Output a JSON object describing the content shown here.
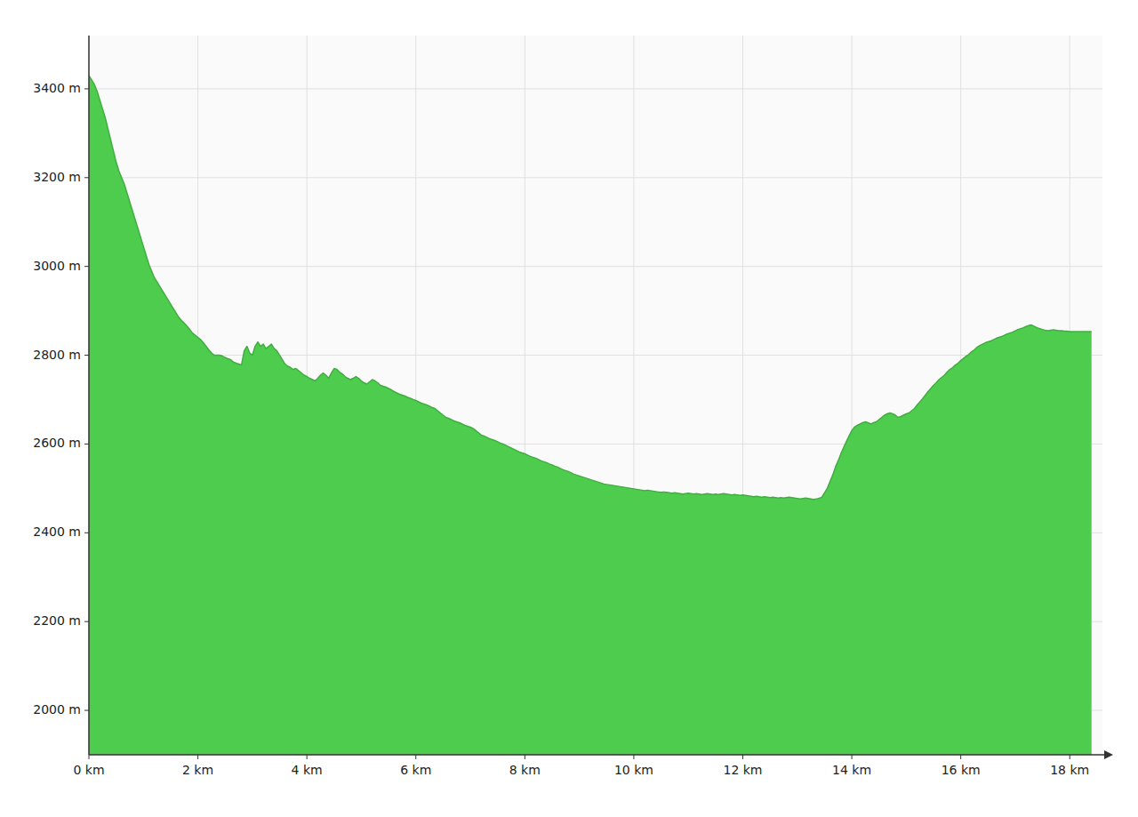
{
  "chart_data": {
    "type": "area",
    "color": "#4dcc4d",
    "grid": true,
    "xlim": [
      0,
      18.6
    ],
    "ylim": [
      1900,
      3520
    ],
    "xticks": [
      {
        "value": 0,
        "label": "0 km"
      },
      {
        "value": 2,
        "label": "2 km"
      },
      {
        "value": 4,
        "label": "4 km"
      },
      {
        "value": 6,
        "label": "6 km"
      },
      {
        "value": 8,
        "label": "8 km"
      },
      {
        "value": 10,
        "label": "10 km"
      },
      {
        "value": 12,
        "label": "12 km"
      },
      {
        "value": 14,
        "label": "14 km"
      },
      {
        "value": 16,
        "label": "16 km"
      },
      {
        "value": 18,
        "label": "18 km"
      }
    ],
    "yticks": [
      {
        "value": 2000,
        "label": "2000 m"
      },
      {
        "value": 2200,
        "label": "2200 m"
      },
      {
        "value": 2400,
        "label": "2400 m"
      },
      {
        "value": 2600,
        "label": "2600 m"
      },
      {
        "value": 2800,
        "label": "2800 m"
      },
      {
        "value": 3000,
        "label": "3000 m"
      },
      {
        "value": 3200,
        "label": "3200 m"
      },
      {
        "value": 3400,
        "label": "3400 m"
      }
    ],
    "x": [
      0.0,
      0.05,
      0.1,
      0.15,
      0.2,
      0.25,
      0.3,
      0.35,
      0.4,
      0.45,
      0.5,
      0.55,
      0.6,
      0.65,
      0.7,
      0.75,
      0.8,
      0.85,
      0.9,
      0.95,
      1.0,
      1.05,
      1.1,
      1.15,
      1.2,
      1.25,
      1.3,
      1.35,
      1.4,
      1.45,
      1.5,
      1.55,
      1.6,
      1.65,
      1.7,
      1.75,
      1.8,
      1.85,
      1.9,
      1.95,
      2.0,
      2.05,
      2.1,
      2.15,
      2.2,
      2.25,
      2.3,
      2.35,
      2.4,
      2.45,
      2.5,
      2.55,
      2.6,
      2.65,
      2.7,
      2.75,
      2.8,
      2.85,
      2.9,
      2.95,
      3.0,
      3.05,
      3.1,
      3.15,
      3.2,
      3.25,
      3.3,
      3.35,
      3.4,
      3.45,
      3.5,
      3.55,
      3.6,
      3.65,
      3.7,
      3.75,
      3.8,
      3.85,
      3.9,
      3.95,
      4.0,
      4.05,
      4.1,
      4.15,
      4.2,
      4.25,
      4.3,
      4.35,
      4.4,
      4.45,
      4.5,
      4.55,
      4.6,
      4.65,
      4.7,
      4.75,
      4.8,
      4.85,
      4.9,
      4.95,
      5.0,
      5.05,
      5.1,
      5.15,
      5.2,
      5.25,
      5.3,
      5.35,
      5.4,
      5.45,
      5.5,
      5.55,
      5.6,
      5.65,
      5.7,
      5.75,
      5.8,
      5.85,
      5.9,
      5.95,
      6.0,
      6.05,
      6.1,
      6.15,
      6.2,
      6.25,
      6.3,
      6.35,
      6.4,
      6.45,
      6.5,
      6.55,
      6.6,
      6.65,
      6.7,
      6.75,
      6.8,
      6.85,
      6.9,
      6.95,
      7.0,
      7.05,
      7.1,
      7.15,
      7.2,
      7.25,
      7.3,
      7.35,
      7.4,
      7.45,
      7.5,
      7.55,
      7.6,
      7.65,
      7.7,
      7.75,
      7.8,
      7.85,
      7.9,
      7.95,
      8.0,
      8.05,
      8.1,
      8.15,
      8.2,
      8.25,
      8.3,
      8.35,
      8.4,
      8.45,
      8.5,
      8.55,
      8.6,
      8.65,
      8.7,
      8.75,
      8.8,
      8.85,
      8.9,
      8.95,
      9.0,
      9.05,
      9.1,
      9.15,
      9.2,
      9.25,
      9.3,
      9.35,
      9.4,
      9.45,
      9.5,
      9.55,
      9.6,
      9.65,
      9.7,
      9.75,
      9.8,
      9.85,
      9.9,
      9.95,
      10.0,
      10.05,
      10.1,
      10.15,
      10.2,
      10.25,
      10.3,
      10.35,
      10.4,
      10.45,
      10.5,
      10.55,
      10.6,
      10.65,
      10.7,
      10.75,
      10.8,
      10.85,
      10.9,
      10.95,
      11.0,
      11.05,
      11.1,
      11.15,
      11.2,
      11.25,
      11.3,
      11.35,
      11.4,
      11.45,
      11.5,
      11.55,
      11.6,
      11.65,
      11.7,
      11.75,
      11.8,
      11.85,
      11.9,
      11.95,
      12.0,
      12.05,
      12.1,
      12.15,
      12.2,
      12.25,
      12.3,
      12.35,
      12.4,
      12.45,
      12.5,
      12.55,
      12.6,
      12.65,
      12.7,
      12.75,
      12.8,
      12.85,
      12.9,
      12.95,
      13.0,
      13.05,
      13.1,
      13.15,
      13.2,
      13.25,
      13.3,
      13.35,
      13.4,
      13.45,
      13.5,
      13.55,
      13.6,
      13.65,
      13.7,
      13.75,
      13.8,
      13.85,
      13.9,
      13.95,
      14.0,
      14.05,
      14.1,
      14.15,
      14.2,
      14.25,
      14.3,
      14.35,
      14.4,
      14.45,
      14.5,
      14.55,
      14.6,
      14.65,
      14.7,
      14.75,
      14.8,
      14.85,
      14.9,
      14.95,
      15.0,
      15.05,
      15.1,
      15.15,
      15.2,
      15.25,
      15.3,
      15.35,
      15.4,
      15.45,
      15.5,
      15.55,
      15.6,
      15.65,
      15.7,
      15.75,
      15.8,
      15.85,
      15.9,
      15.95,
      16.0,
      16.05,
      16.1,
      16.15,
      16.2,
      16.25,
      16.3,
      16.35,
      16.4,
      16.45,
      16.5,
      16.55,
      16.6,
      16.65,
      16.7,
      16.75,
      16.8,
      16.85,
      16.9,
      16.95,
      17.0,
      17.05,
      17.1,
      17.15,
      17.2,
      17.25,
      17.3,
      17.35,
      17.4,
      17.45,
      17.5,
      17.55,
      17.6,
      17.65,
      17.7,
      17.75,
      17.8,
      17.85,
      17.9,
      17.95,
      18.0,
      18.1,
      18.2,
      18.3,
      18.4
    ],
    "values": [
      3430,
      3420,
      3410,
      3395,
      3375,
      3355,
      3335,
      3310,
      3285,
      3260,
      3235,
      3215,
      3200,
      3185,
      3165,
      3145,
      3125,
      3105,
      3085,
      3065,
      3045,
      3025,
      3005,
      2990,
      2975,
      2965,
      2955,
      2945,
      2935,
      2925,
      2915,
      2905,
      2895,
      2885,
      2878,
      2872,
      2865,
      2858,
      2850,
      2845,
      2840,
      2835,
      2828,
      2820,
      2812,
      2805,
      2800,
      2800,
      2800,
      2798,
      2795,
      2792,
      2790,
      2785,
      2782,
      2780,
      2778,
      2810,
      2820,
      2805,
      2800,
      2820,
      2830,
      2820,
      2825,
      2815,
      2820,
      2825,
      2815,
      2810,
      2800,
      2790,
      2780,
      2775,
      2772,
      2768,
      2770,
      2765,
      2760,
      2755,
      2752,
      2748,
      2745,
      2742,
      2748,
      2755,
      2760,
      2755,
      2748,
      2760,
      2770,
      2768,
      2762,
      2758,
      2752,
      2748,
      2745,
      2748,
      2752,
      2748,
      2742,
      2738,
      2735,
      2740,
      2745,
      2742,
      2738,
      2732,
      2730,
      2728,
      2725,
      2722,
      2718,
      2715,
      2712,
      2710,
      2708,
      2705,
      2703,
      2700,
      2698,
      2695,
      2692,
      2690,
      2688,
      2685,
      2682,
      2680,
      2675,
      2670,
      2665,
      2660,
      2658,
      2655,
      2652,
      2650,
      2648,
      2645,
      2642,
      2640,
      2638,
      2635,
      2630,
      2625,
      2620,
      2618,
      2615,
      2612,
      2610,
      2608,
      2605,
      2602,
      2600,
      2597,
      2594,
      2591,
      2588,
      2585,
      2582,
      2580,
      2578,
      2575,
      2572,
      2570,
      2568,
      2565,
      2562,
      2560,
      2558,
      2555,
      2553,
      2550,
      2548,
      2545,
      2542,
      2540,
      2538,
      2535,
      2532,
      2530,
      2528,
      2526,
      2524,
      2522,
      2520,
      2518,
      2516,
      2514,
      2512,
      2510,
      2509,
      2508,
      2507,
      2506,
      2505,
      2504,
      2503,
      2502,
      2501,
      2500,
      2499,
      2498,
      2497,
      2496,
      2495,
      2496,
      2495,
      2494,
      2493,
      2492,
      2491,
      2492,
      2491,
      2490,
      2489,
      2490,
      2489,
      2488,
      2487,
      2488,
      2489,
      2488,
      2487,
      2488,
      2487,
      2486,
      2487,
      2488,
      2487,
      2486,
      2487,
      2486,
      2487,
      2488,
      2487,
      2486,
      2485,
      2486,
      2485,
      2484,
      2485,
      2484,
      2483,
      2482,
      2481,
      2482,
      2481,
      2480,
      2481,
      2480,
      2479,
      2480,
      2479,
      2478,
      2479,
      2478,
      2479,
      2480,
      2479,
      2478,
      2477,
      2476,
      2477,
      2478,
      2477,
      2476,
      2475,
      2476,
      2478,
      2480,
      2490,
      2500,
      2515,
      2530,
      2548,
      2562,
      2578,
      2592,
      2605,
      2618,
      2630,
      2638,
      2642,
      2645,
      2648,
      2650,
      2648,
      2645,
      2648,
      2650,
      2655,
      2660,
      2665,
      2668,
      2670,
      2668,
      2665,
      2660,
      2662,
      2665,
      2668,
      2670,
      2675,
      2680,
      2688,
      2695,
      2702,
      2710,
      2718,
      2725,
      2732,
      2738,
      2745,
      2750,
      2755,
      2762,
      2768,
      2772,
      2778,
      2782,
      2788,
      2793,
      2798,
      2802,
      2808,
      2812,
      2818,
      2822,
      2825,
      2828,
      2830,
      2832,
      2835,
      2838,
      2840,
      2842,
      2845,
      2848,
      2850,
      2852,
      2855,
      2858,
      2860,
      2862,
      2865,
      2867,
      2868,
      2865,
      2862,
      2860,
      2858,
      2856,
      2855,
      2856,
      2857,
      2856,
      2855,
      2855,
      2854,
      2854,
      2853,
      2853,
      2853,
      2853,
      2853
    ]
  }
}
